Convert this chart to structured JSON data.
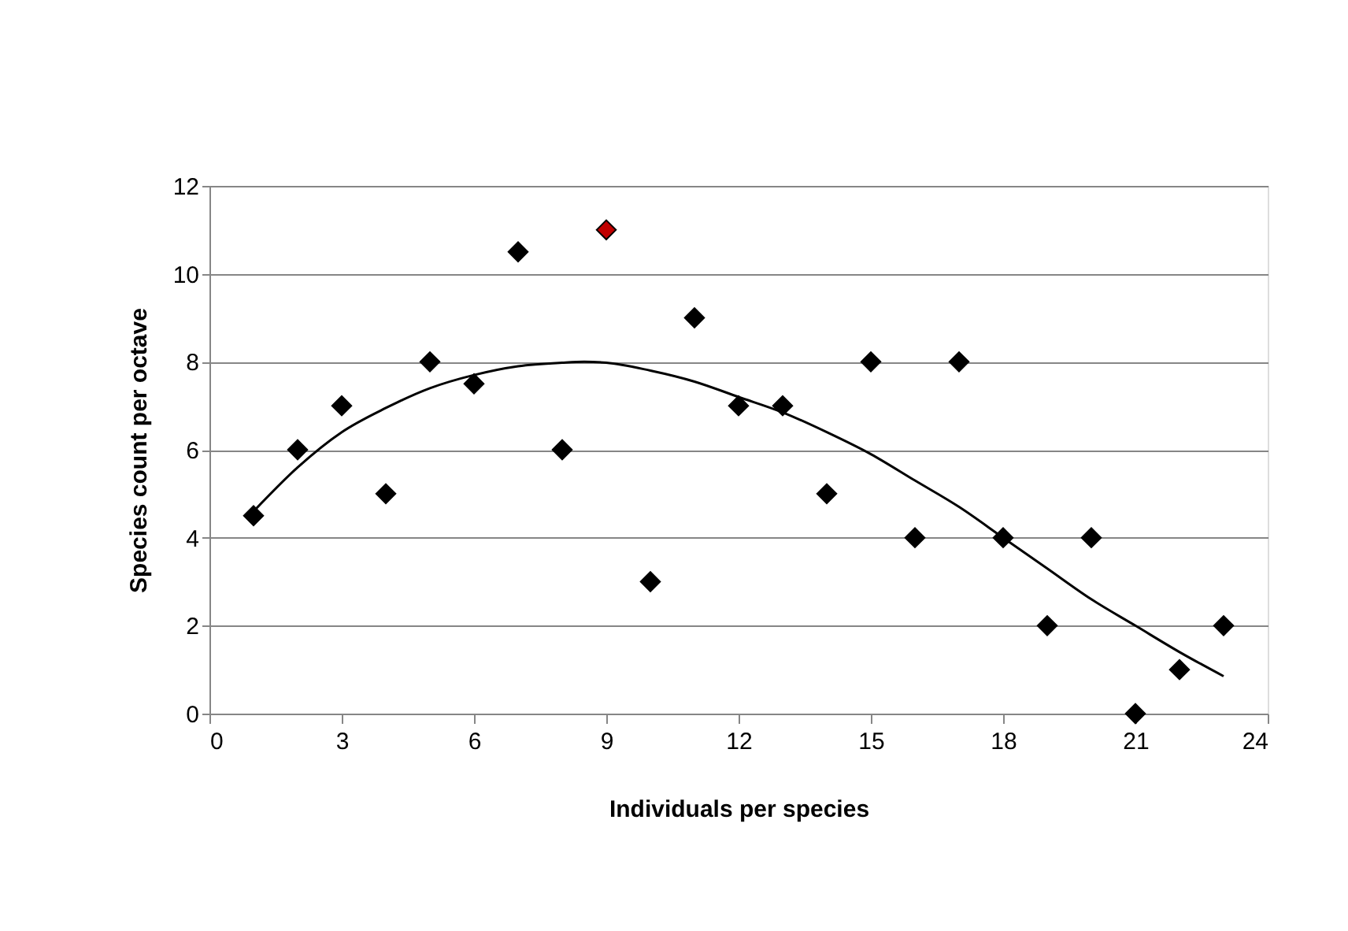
{
  "chart_data": {
    "type": "scatter",
    "xlabel": "Individuals per species",
    "ylabel": "Species count per octave",
    "xlim": [
      0,
      24
    ],
    "xticks": [
      0,
      3,
      6,
      9,
      12,
      15,
      18,
      21,
      24
    ],
    "ylim": [
      0,
      12
    ],
    "yticks": [
      0,
      2,
      4,
      6,
      8,
      10,
      12
    ],
    "grid": "y",
    "series": [
      {
        "marker": "diamond",
        "x": [
          1,
          2,
          3,
          4,
          5,
          6,
          7,
          8,
          9,
          10,
          11,
          12,
          13,
          14,
          15,
          16,
          17,
          18,
          19,
          20,
          21,
          22,
          23
        ],
        "values": [
          4.5,
          6,
          7,
          5,
          8,
          7.5,
          10.5,
          6,
          11,
          3,
          9,
          7,
          7,
          5,
          8,
          4,
          8,
          4,
          2,
          4,
          0,
          1,
          2
        ],
        "colors": [
          "#000000",
          "#000000",
          "#000000",
          "#000000",
          "#000000",
          "#000000",
          "#000000",
          "#000000",
          "#c00000",
          "#000000",
          "#000000",
          "#000000",
          "#000000",
          "#000000",
          "#000000",
          "#000000",
          "#000000",
          "#000000",
          "#000000",
          "#000000",
          "#000000",
          "#000000",
          "#000000"
        ]
      },
      {
        "type": "line",
        "marker": "none",
        "line_style": "solid",
        "color": "#000000",
        "x": [
          1,
          2,
          3,
          4,
          5,
          6,
          7,
          8,
          8.5,
          9,
          10,
          11,
          12,
          13,
          14,
          15,
          16,
          17,
          18,
          19,
          20,
          21,
          22,
          23
        ],
        "values": [
          4.6,
          5.6,
          6.4,
          6.95,
          7.4,
          7.7,
          7.9,
          7.98,
          8.0,
          7.98,
          7.8,
          7.55,
          7.2,
          6.85,
          6.4,
          5.9,
          5.3,
          4.7,
          4.0,
          3.3,
          2.6,
          2.0,
          1.4,
          0.85
        ]
      }
    ]
  }
}
